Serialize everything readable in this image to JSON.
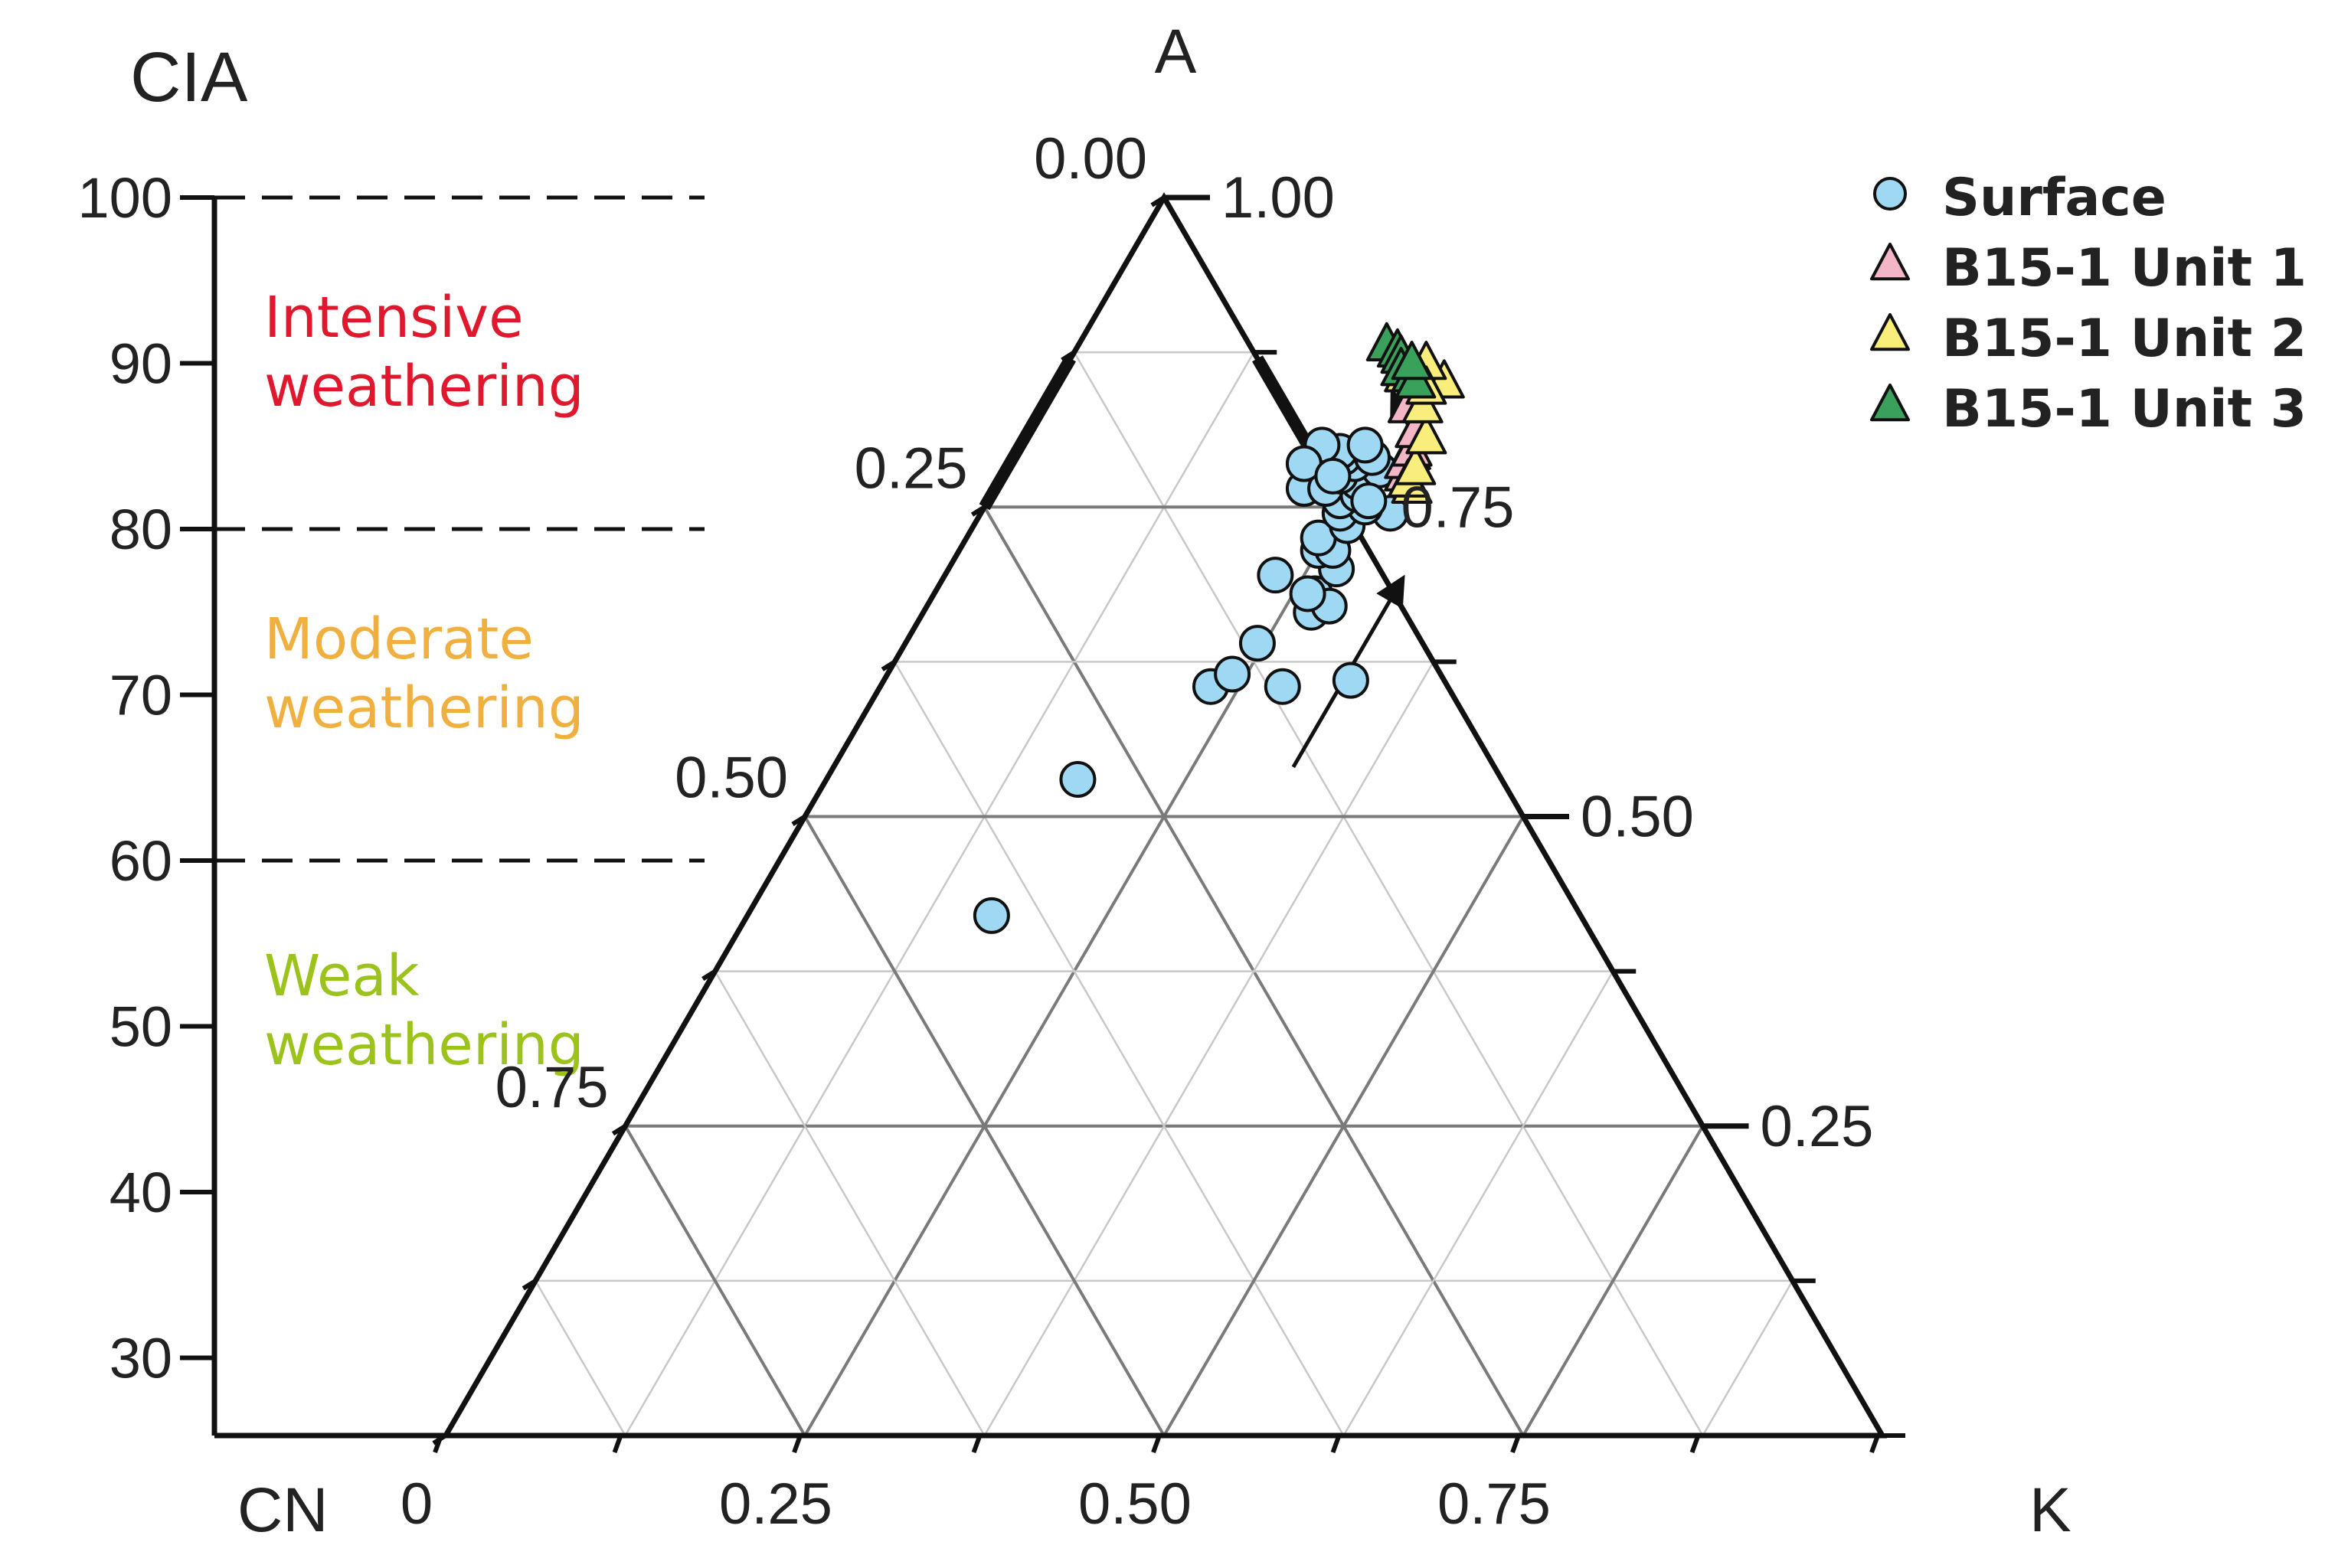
{
  "chart_data": {
    "type": "scatter",
    "subtype": "ternary-with-cia-scale",
    "title": "",
    "vertices": {
      "top": "A",
      "left": "CN",
      "right": "K"
    },
    "cia_axis": {
      "label": "CIA",
      "range": [
        25,
        100
      ],
      "ticks": [
        "100",
        "90",
        "80",
        "70",
        "60",
        "50",
        "40",
        "30"
      ],
      "tick_values": [
        100,
        90,
        80,
        70,
        60,
        50,
        40,
        30
      ]
    },
    "zones": [
      {
        "line1": "Intensive",
        "line2": "weathering",
        "min": 80,
        "max": 100,
        "color": "#e0182d"
      },
      {
        "line1": "Moderate",
        "line2": "weathering",
        "min": 60,
        "max": 80,
        "color": "#f0b040"
      },
      {
        "line1": "Weak",
        "line2": "weathering",
        "min": 0,
        "max": 60,
        "color": "#9cc21c"
      }
    ],
    "zone_boundaries": [
      100,
      80,
      60
    ],
    "ternary_labels": {
      "left_edge": [
        {
          "text": "0.00",
          "A": 1.0
        },
        {
          "text": "0.25",
          "A": 0.75
        },
        {
          "text": "0.50",
          "A": 0.5
        },
        {
          "text": "0.75",
          "A": 0.25
        }
      ],
      "right_edge": [
        {
          "text": "1.00",
          "A": 1.0
        },
        {
          "text": "0.75",
          "A": 0.75
        },
        {
          "text": "0.50",
          "A": 0.5
        },
        {
          "text": "0.25",
          "A": 0.25
        }
      ],
      "bottom_edge": [
        {
          "text": "0",
          "K": 0.0
        },
        {
          "text": "0.25",
          "K": 0.25
        },
        {
          "text": "0.50",
          "K": 0.5
        },
        {
          "text": "0.75",
          "K": 0.75
        }
      ]
    },
    "legend": {
      "position": "top-right",
      "entries": [
        {
          "label": "Surface",
          "marker": "circle",
          "color": "#9fd8f2"
        },
        {
          "label": "B15-1 Unit 1",
          "marker": "triangle",
          "color": "#f2b6c6"
        },
        {
          "label": "B15-1 Unit 2",
          "marker": "triangle",
          "color": "#f9ee7c"
        },
        {
          "label": "B15-1 Unit 3",
          "marker": "triangle",
          "color": "#3aa15c"
        }
      ]
    },
    "series": [
      {
        "name": "Surface",
        "points": [
          {
            "A": 0.42,
            "K": 0.17
          },
          {
            "A": 0.53,
            "K": 0.175
          },
          {
            "A": 0.605,
            "K": 0.23
          },
          {
            "A": 0.615,
            "K": 0.24
          },
          {
            "A": 0.64,
            "K": 0.245
          },
          {
            "A": 0.605,
            "K": 0.28
          },
          {
            "A": 0.61,
            "K": 0.325
          },
          {
            "A": 0.665,
            "K": 0.27
          },
          {
            "A": 0.68,
            "K": 0.265
          },
          {
            "A": 0.67,
            "K": 0.28
          },
          {
            "A": 0.68,
            "K": 0.26
          },
          {
            "A": 0.695,
            "K": 0.23
          },
          {
            "A": 0.7,
            "K": 0.27
          },
          {
            "A": 0.715,
            "K": 0.25
          },
          {
            "A": 0.715,
            "K": 0.26
          },
          {
            "A": 0.725,
            "K": 0.245
          },
          {
            "A": 0.735,
            "K": 0.26
          },
          {
            "A": 0.745,
            "K": 0.25
          },
          {
            "A": 0.745,
            "K": 0.285
          },
          {
            "A": 0.75,
            "K": 0.265
          },
          {
            "A": 0.755,
            "K": 0.245
          },
          {
            "A": 0.76,
            "K": 0.255
          },
          {
            "A": 0.765,
            "K": 0.215
          },
          {
            "A": 0.765,
            "K": 0.23
          },
          {
            "A": 0.77,
            "K": 0.25
          },
          {
            "A": 0.775,
            "K": 0.235
          },
          {
            "A": 0.78,
            "K": 0.26
          },
          {
            "A": 0.785,
            "K": 0.24
          },
          {
            "A": 0.79,
            "K": 0.23
          },
          {
            "A": 0.79,
            "K": 0.25
          },
          {
            "A": 0.795,
            "K": 0.225
          },
          {
            "A": 0.8,
            "K": 0.21
          },
          {
            "A": 0.8,
            "K": 0.24
          },
          {
            "A": 0.785,
            "K": 0.205
          },
          {
            "A": 0.775,
            "K": 0.23
          },
          {
            "A": 0.755,
            "K": 0.265
          }
        ]
      },
      {
        "name": "B15-1 Unit 1",
        "points": [
          {
            "A": 0.775,
            "K": 0.28
          },
          {
            "A": 0.785,
            "K": 0.275
          },
          {
            "A": 0.795,
            "K": 0.275
          },
          {
            "A": 0.81,
            "K": 0.27
          },
          {
            "A": 0.83,
            "K": 0.255
          }
        ]
      },
      {
        "name": "B15-1 Unit 2",
        "points": [
          {
            "A": 0.765,
            "K": 0.29
          },
          {
            "A": 0.77,
            "K": 0.285
          },
          {
            "A": 0.78,
            "K": 0.285
          },
          {
            "A": 0.805,
            "K": 0.28
          },
          {
            "A": 0.83,
            "K": 0.265
          },
          {
            "A": 0.85,
            "K": 0.27
          },
          {
            "A": 0.865,
            "K": 0.25
          },
          {
            "A": 0.855,
            "K": 0.24
          },
          {
            "A": 0.845,
            "K": 0.26
          }
        ]
      },
      {
        "name": "B15-1 Unit 3",
        "points": [
          {
            "A": 0.88,
            "K": 0.215
          },
          {
            "A": 0.875,
            "K": 0.225
          },
          {
            "A": 0.87,
            "K": 0.23
          },
          {
            "A": 0.86,
            "K": 0.235
          },
          {
            "A": 0.855,
            "K": 0.245
          },
          {
            "A": 0.85,
            "K": 0.25
          },
          {
            "A": 0.865,
            "K": 0.24
          }
        ]
      }
    ],
    "arrows": [
      {
        "from": {
          "A": 0.54,
          "K": 0.32
        },
        "to": {
          "A": 0.69,
          "K": 0.32
        }
      },
      {
        "from": {
          "A": 0.78,
          "K": 0.295
        },
        "to": {
          "A": 0.84,
          "K": 0.24
        }
      }
    ],
    "grid": true
  }
}
